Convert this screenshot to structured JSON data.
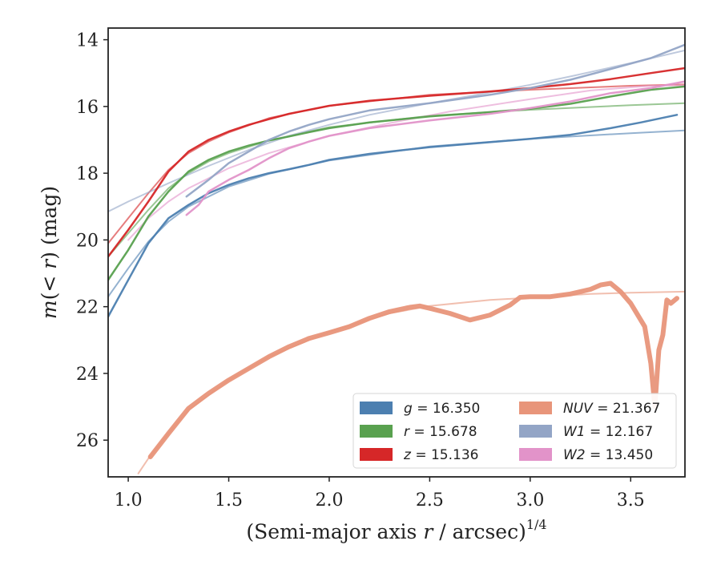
{
  "chart_data": {
    "type": "line",
    "xlabel_parts": [
      "(Semi-major axis ",
      "r",
      " / arcsec)",
      "1/4"
    ],
    "ylabel_parts": [
      "m",
      "(< ",
      "r",
      ") (mag)"
    ],
    "xlim": [
      0.9,
      3.77
    ],
    "ylim": [
      27.1,
      13.65
    ],
    "y_inverted": true,
    "x_ticks": [
      1.0,
      1.5,
      2.0,
      2.5,
      3.0,
      3.5
    ],
    "x_tick_labels": [
      "1.0",
      "1.5",
      "2.0",
      "2.5",
      "3.0",
      "3.5"
    ],
    "y_ticks": [
      14,
      16,
      18,
      20,
      22,
      24,
      26
    ],
    "y_tick_labels": [
      "14",
      "16",
      "18",
      "20",
      "22",
      "24",
      "26"
    ],
    "grid": false,
    "legend_position": "lower-right",
    "legend_columns": 2,
    "series": [
      {
        "name": "g",
        "legend_label": "g = 16.350",
        "color": "#4c7fb0",
        "band_width": 2.5,
        "data": [
          [
            0.9,
            22.3
          ],
          [
            1.0,
            21.2
          ],
          [
            1.1,
            20.1
          ],
          [
            1.2,
            19.35
          ],
          [
            1.3,
            18.95
          ],
          [
            1.4,
            18.6
          ],
          [
            1.5,
            18.35
          ],
          [
            1.6,
            18.15
          ],
          [
            1.7,
            18.0
          ],
          [
            1.8,
            17.88
          ],
          [
            1.9,
            17.75
          ],
          [
            2.0,
            17.6
          ],
          [
            2.2,
            17.42
          ],
          [
            2.5,
            17.22
          ],
          [
            2.8,
            17.07
          ],
          [
            3.0,
            16.97
          ],
          [
            3.2,
            16.85
          ],
          [
            3.4,
            16.65
          ],
          [
            3.55,
            16.48
          ],
          [
            3.73,
            16.25
          ]
        ],
        "model": [
          [
            0.9,
            21.7
          ],
          [
            1.0,
            20.85
          ],
          [
            1.1,
            20.05
          ],
          [
            1.2,
            19.45
          ],
          [
            1.3,
            19.0
          ],
          [
            1.5,
            18.4
          ],
          [
            1.7,
            18.02
          ],
          [
            2.0,
            17.62
          ],
          [
            2.5,
            17.2
          ],
          [
            3.0,
            16.97
          ],
          [
            3.5,
            16.8
          ],
          [
            3.77,
            16.72
          ]
        ]
      },
      {
        "name": "r",
        "legend_label": "r = 15.678",
        "color": "#59a14f",
        "band_width": 2.5,
        "data": [
          [
            0.9,
            21.2
          ],
          [
            1.0,
            20.3
          ],
          [
            1.1,
            19.3
          ],
          [
            1.2,
            18.55
          ],
          [
            1.3,
            17.95
          ],
          [
            1.4,
            17.6
          ],
          [
            1.5,
            17.35
          ],
          [
            1.6,
            17.17
          ],
          [
            1.7,
            17.02
          ],
          [
            1.8,
            16.9
          ],
          [
            1.9,
            16.77
          ],
          [
            2.0,
            16.65
          ],
          [
            2.2,
            16.48
          ],
          [
            2.5,
            16.3
          ],
          [
            2.8,
            16.17
          ],
          [
            3.0,
            16.07
          ],
          [
            3.2,
            15.92
          ],
          [
            3.4,
            15.7
          ],
          [
            3.6,
            15.5
          ],
          [
            3.77,
            15.4
          ]
        ],
        "model": [
          [
            0.9,
            20.5
          ],
          [
            1.0,
            19.8
          ],
          [
            1.1,
            19.1
          ],
          [
            1.2,
            18.45
          ],
          [
            1.3,
            18.0
          ],
          [
            1.4,
            17.65
          ],
          [
            1.5,
            17.4
          ],
          [
            1.7,
            17.02
          ],
          [
            2.0,
            16.62
          ],
          [
            2.5,
            16.28
          ],
          [
            3.0,
            16.1
          ],
          [
            3.5,
            15.96
          ],
          [
            3.77,
            15.9
          ]
        ]
      },
      {
        "name": "z",
        "legend_label": "z = 15.136",
        "color": "#d62728",
        "band_width": 2.5,
        "data": [
          [
            0.9,
            20.5
          ],
          [
            1.0,
            19.7
          ],
          [
            1.1,
            18.85
          ],
          [
            1.2,
            17.95
          ],
          [
            1.3,
            17.35
          ],
          [
            1.4,
            17.0
          ],
          [
            1.5,
            16.75
          ],
          [
            1.6,
            16.55
          ],
          [
            1.7,
            16.38
          ],
          [
            1.8,
            16.22
          ],
          [
            1.9,
            16.1
          ],
          [
            2.0,
            15.98
          ],
          [
            2.2,
            15.83
          ],
          [
            2.5,
            15.68
          ],
          [
            2.8,
            15.55
          ],
          [
            3.0,
            15.45
          ],
          [
            3.2,
            15.33
          ],
          [
            3.4,
            15.18
          ],
          [
            3.6,
            15.0
          ],
          [
            3.77,
            14.85
          ]
        ],
        "model": [
          [
            0.9,
            20.1
          ],
          [
            1.0,
            19.35
          ],
          [
            1.1,
            18.6
          ],
          [
            1.2,
            17.9
          ],
          [
            1.3,
            17.4
          ],
          [
            1.4,
            17.05
          ],
          [
            1.5,
            16.78
          ],
          [
            1.7,
            16.35
          ],
          [
            2.0,
            15.98
          ],
          [
            2.5,
            15.65
          ],
          [
            3.0,
            15.5
          ],
          [
            3.5,
            15.38
          ],
          [
            3.77,
            15.34
          ]
        ]
      },
      {
        "name": "NUV",
        "legend_label": "NUV = 21.367",
        "color": "#e8957a",
        "band_width": 6,
        "data": [
          [
            1.11,
            26.5
          ],
          [
            1.2,
            25.8
          ],
          [
            1.3,
            25.05
          ],
          [
            1.4,
            24.6
          ],
          [
            1.5,
            24.2
          ],
          [
            1.6,
            23.85
          ],
          [
            1.7,
            23.5
          ],
          [
            1.8,
            23.2
          ],
          [
            1.9,
            22.95
          ],
          [
            2.0,
            22.78
          ],
          [
            2.1,
            22.6
          ],
          [
            2.2,
            22.35
          ],
          [
            2.3,
            22.15
          ],
          [
            2.4,
            22.02
          ],
          [
            2.45,
            21.98
          ],
          [
            2.5,
            22.05
          ],
          [
            2.6,
            22.2
          ],
          [
            2.7,
            22.4
          ],
          [
            2.8,
            22.25
          ],
          [
            2.9,
            21.95
          ],
          [
            2.95,
            21.72
          ],
          [
            3.0,
            21.7
          ],
          [
            3.1,
            21.7
          ],
          [
            3.2,
            21.62
          ],
          [
            3.25,
            21.55
          ],
          [
            3.3,
            21.48
          ],
          [
            3.35,
            21.35
          ],
          [
            3.4,
            21.3
          ],
          [
            3.45,
            21.55
          ],
          [
            3.5,
            21.9
          ],
          [
            3.54,
            22.3
          ],
          [
            3.57,
            22.6
          ],
          [
            3.6,
            23.7
          ],
          [
            3.62,
            25.0
          ],
          [
            3.64,
            23.3
          ],
          [
            3.66,
            22.85
          ],
          [
            3.68,
            21.8
          ],
          [
            3.7,
            21.9
          ],
          [
            3.73,
            21.75
          ]
        ],
        "model": [
          [
            1.05,
            27.0
          ],
          [
            1.1,
            26.55
          ],
          [
            1.2,
            25.8
          ],
          [
            1.3,
            25.1
          ],
          [
            1.5,
            24.2
          ],
          [
            1.7,
            23.5
          ],
          [
            2.0,
            22.75
          ],
          [
            2.3,
            22.2
          ],
          [
            2.5,
            21.98
          ],
          [
            2.8,
            21.8
          ],
          [
            3.0,
            21.73
          ],
          [
            3.3,
            21.62
          ],
          [
            3.5,
            21.58
          ],
          [
            3.77,
            21.55
          ]
        ]
      },
      {
        "name": "W1",
        "legend_label": "W1 = 12.167",
        "color": "#93a5c6",
        "band_width": 2.5,
        "data": [
          [
            1.29,
            18.7
          ],
          [
            1.4,
            18.2
          ],
          [
            1.5,
            17.7
          ],
          [
            1.6,
            17.35
          ],
          [
            1.7,
            17.0
          ],
          [
            1.8,
            16.75
          ],
          [
            1.9,
            16.55
          ],
          [
            2.0,
            16.38
          ],
          [
            2.2,
            16.12
          ],
          [
            2.5,
            15.9
          ],
          [
            2.8,
            15.65
          ],
          [
            3.0,
            15.45
          ],
          [
            3.2,
            15.2
          ],
          [
            3.4,
            14.88
          ],
          [
            3.6,
            14.55
          ],
          [
            3.77,
            14.15
          ]
        ],
        "model": [
          [
            0.9,
            19.15
          ],
          [
            1.0,
            18.85
          ],
          [
            1.2,
            18.3
          ],
          [
            1.4,
            17.78
          ],
          [
            1.6,
            17.3
          ],
          [
            1.8,
            16.88
          ],
          [
            2.0,
            16.55
          ],
          [
            2.2,
            16.25
          ],
          [
            2.5,
            15.9
          ],
          [
            2.8,
            15.58
          ],
          [
            3.0,
            15.35
          ],
          [
            3.2,
            15.1
          ],
          [
            3.5,
            14.7
          ],
          [
            3.77,
            14.32
          ]
        ]
      },
      {
        "name": "W2",
        "legend_label": "W2 = 13.450",
        "color": "#e293c9",
        "band_width": 2.5,
        "data": [
          [
            1.29,
            19.25
          ],
          [
            1.35,
            18.95
          ],
          [
            1.4,
            18.55
          ],
          [
            1.5,
            18.2
          ],
          [
            1.6,
            17.9
          ],
          [
            1.7,
            17.55
          ],
          [
            1.8,
            17.25
          ],
          [
            1.9,
            17.05
          ],
          [
            2.0,
            16.88
          ],
          [
            2.2,
            16.65
          ],
          [
            2.5,
            16.42
          ],
          [
            2.8,
            16.22
          ],
          [
            3.0,
            16.05
          ],
          [
            3.2,
            15.85
          ],
          [
            3.4,
            15.6
          ],
          [
            3.6,
            15.45
          ],
          [
            3.77,
            15.25
          ]
        ],
        "model": [
          [
            1.0,
            20.0
          ],
          [
            1.1,
            19.35
          ],
          [
            1.2,
            18.85
          ],
          [
            1.3,
            18.45
          ],
          [
            1.5,
            17.85
          ],
          [
            1.7,
            17.4
          ],
          [
            2.0,
            16.88
          ],
          [
            2.3,
            16.5
          ],
          [
            2.6,
            16.15
          ],
          [
            3.0,
            15.78
          ],
          [
            3.3,
            15.52
          ],
          [
            3.6,
            15.38
          ],
          [
            3.77,
            15.36
          ]
        ]
      }
    ]
  }
}
